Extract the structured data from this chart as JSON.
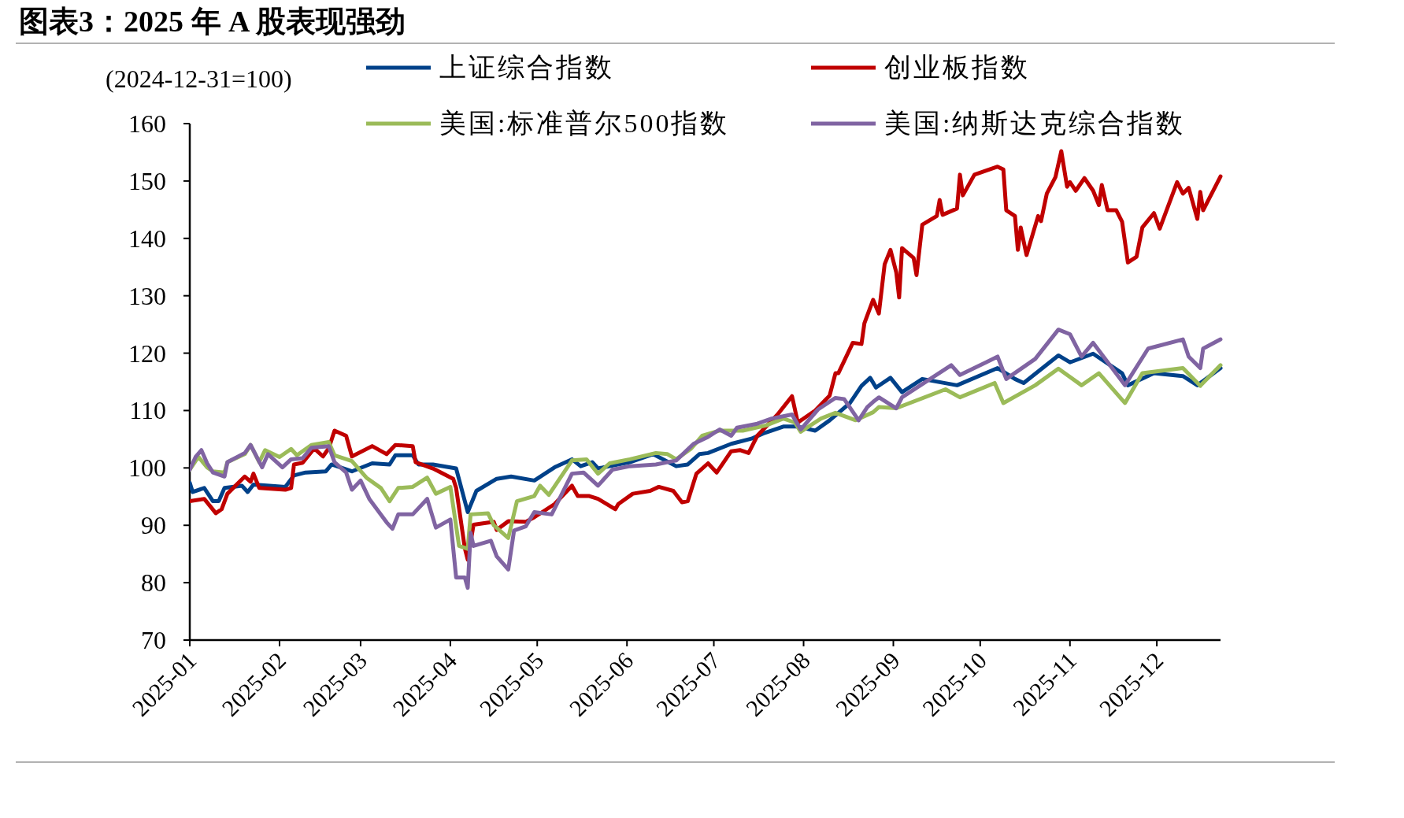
{
  "chart_data": {
    "type": "line",
    "title": "图表3：2025 年 A 股表现强劲",
    "subtitle": "(2024-12-31=100)",
    "legend": "top",
    "grid": false,
    "xlim": [
      "2025-01-01",
      "2025-12-23"
    ],
    "ylim": [
      70,
      160
    ],
    "yticks": [
      70,
      80,
      90,
      100,
      110,
      120,
      130,
      140,
      150,
      160
    ],
    "xticks": [
      {
        "value": "2025-01-01",
        "label": "2025-01"
      },
      {
        "value": "2025-02-01",
        "label": "2025-02"
      },
      {
        "value": "2025-03-01",
        "label": "2025-03"
      },
      {
        "value": "2025-04-01",
        "label": "2025-04"
      },
      {
        "value": "2025-05-01",
        "label": "2025-05"
      },
      {
        "value": "2025-06-01",
        "label": "2025-06"
      },
      {
        "value": "2025-07-01",
        "label": "2025-07"
      },
      {
        "value": "2025-08-01",
        "label": "2025-08"
      },
      {
        "value": "2025-09-01",
        "label": "2025-09"
      },
      {
        "value": "2025-10-01",
        "label": "2025-10"
      },
      {
        "value": "2025-11-01",
        "label": "2025-11"
      },
      {
        "value": "2025-12-01",
        "label": "2025-12"
      }
    ],
    "series": [
      {
        "name": "上证综合指数",
        "color": "#004189",
        "x": [
          "2025-01-01",
          "2025-01-02",
          "2025-01-06",
          "2025-01-09",
          "2025-01-11",
          "2025-01-13",
          "2025-01-19",
          "2025-01-21",
          "2025-01-23",
          "2025-02-03",
          "2025-02-06",
          "2025-02-10",
          "2025-02-17",
          "2025-02-19",
          "2025-02-26",
          "2025-03-05",
          "2025-03-11",
          "2025-03-13",
          "2025-03-19",
          "2025-03-21",
          "2025-03-26",
          "2025-04-03",
          "2025-04-07",
          "2025-04-10",
          "2025-04-17",
          "2025-04-22",
          "2025-04-30",
          "2025-05-07",
          "2025-05-13",
          "2025-05-16",
          "2025-05-20",
          "2025-05-22",
          "2025-06-02",
          "2025-06-10",
          "2025-06-18",
          "2025-06-22",
          "2025-06-26",
          "2025-06-29",
          "2025-07-07",
          "2025-07-14",
          "2025-07-18",
          "2025-07-25",
          "2025-07-30",
          "2025-08-05",
          "2025-08-10",
          "2025-08-17",
          "2025-08-21",
          "2025-08-24",
          "2025-08-26",
          "2025-08-31",
          "2025-09-04",
          "2025-09-11",
          "2025-09-23",
          "2025-10-07",
          "2025-10-13",
          "2025-10-16",
          "2025-10-28",
          "2025-11-01",
          "2025-11-09",
          "2025-11-19",
          "2025-11-21",
          "2025-11-30",
          "2025-12-10",
          "2025-12-15",
          "2025-12-23"
        ],
        "values": [
          97.4,
          95.8,
          96.5,
          94.2,
          94.2,
          96.5,
          96.9,
          95.8,
          97.1,
          96.7,
          98.7,
          99.2,
          99.4,
          100.6,
          99.4,
          100.8,
          100.6,
          102.2,
          102.2,
          100.6,
          100.6,
          99.9,
          92.3,
          96,
          98.1,
          98.5,
          97.8,
          100.1,
          101.5,
          100.3,
          101,
          99.9,
          101,
          102.4,
          100.3,
          100.6,
          102.4,
          102.6,
          104.2,
          105.1,
          106,
          107.2,
          107.2,
          106.5,
          108.3,
          111.3,
          114.3,
          115.7,
          114,
          115.7,
          113.2,
          115.5,
          114.4,
          117.4,
          115.5,
          114.8,
          119.6,
          118.4,
          119.9,
          116.5,
          114.4,
          116.5,
          116,
          114.4,
          117.4
        ]
      },
      {
        "name": "创业板指数",
        "color": "#c00000",
        "x": [
          "2025-01-01",
          "2025-01-06",
          "2025-01-10",
          "2025-01-12",
          "2025-01-14",
          "2025-01-20",
          "2025-01-22",
          "2025-01-23",
          "2025-01-25",
          "2025-02-03",
          "2025-02-05",
          "2025-02-06",
          "2025-02-09",
          "2025-02-13",
          "2025-02-16",
          "2025-02-18",
          "2025-02-20",
          "2025-02-24",
          "2025-02-26",
          "2025-03-05",
          "2025-03-10",
          "2025-03-13",
          "2025-03-19",
          "2025-03-20",
          "2025-03-26",
          "2025-04-02",
          "2025-04-03",
          "2025-04-06",
          "2025-04-07",
          "2025-04-09",
          "2025-04-16",
          "2025-04-17",
          "2025-04-21",
          "2025-04-27",
          "2025-04-30",
          "2025-05-07",
          "2025-05-13",
          "2025-05-15",
          "2025-05-19",
          "2025-05-22",
          "2025-05-28",
          "2025-05-29",
          "2025-06-03",
          "2025-06-09",
          "2025-06-12",
          "2025-06-17",
          "2025-06-20",
          "2025-06-22",
          "2025-06-25",
          "2025-06-29",
          "2025-07-02",
          "2025-07-07",
          "2025-07-10",
          "2025-07-13",
          "2025-07-16",
          "2025-07-23",
          "2025-07-28",
          "2025-07-30",
          "2025-08-05",
          "2025-08-10",
          "2025-08-12",
          "2025-08-13",
          "2025-08-18",
          "2025-08-21",
          "2025-08-22",
          "2025-08-25",
          "2025-08-27",
          "2025-08-29",
          "2025-08-31",
          "2025-09-02",
          "2025-09-03",
          "2025-09-04",
          "2025-09-08",
          "2025-09-09",
          "2025-09-11",
          "2025-09-16",
          "2025-09-17",
          "2025-09-18",
          "2025-09-23",
          "2025-09-24",
          "2025-09-25",
          "2025-09-29",
          "2025-10-07",
          "2025-10-09",
          "2025-10-10",
          "2025-10-13",
          "2025-10-14",
          "2025-10-15",
          "2025-10-17",
          "2025-10-21",
          "2025-10-22",
          "2025-10-24",
          "2025-10-27",
          "2025-10-29",
          "2025-10-31",
          "2025-11-01",
          "2025-11-03",
          "2025-11-06",
          "2025-11-09",
          "2025-11-11",
          "2025-11-12",
          "2025-11-14",
          "2025-11-17",
          "2025-11-19",
          "2025-11-21",
          "2025-11-24",
          "2025-11-26",
          "2025-11-30",
          "2025-12-02",
          "2025-12-08",
          "2025-12-10",
          "2025-12-12",
          "2025-12-15",
          "2025-12-16",
          "2025-12-17",
          "2025-12-23"
        ],
        "values": [
          94.2,
          94.6,
          92.1,
          92.8,
          95.5,
          98.5,
          97.6,
          99,
          96.5,
          96.2,
          96.5,
          100.6,
          100.9,
          103.4,
          102,
          103.4,
          106.5,
          105.6,
          102,
          103.8,
          102.4,
          104,
          103.8,
          101,
          99.9,
          98.1,
          96.5,
          86,
          84,
          90.1,
          90.6,
          89.2,
          90.7,
          90.6,
          91.4,
          93.7,
          96.9,
          95.1,
          95.1,
          94.6,
          92.8,
          93.7,
          95.5,
          96,
          96.7,
          96,
          94,
          94.2,
          99,
          100.8,
          99.2,
          102.9,
          103.1,
          102.6,
          105.6,
          109.3,
          112.5,
          107.9,
          110,
          112.6,
          116.5,
          116.5,
          121.8,
          121.6,
          125.2,
          129.3,
          126.9,
          135.5,
          138,
          134.1,
          129.7,
          138.3,
          136.6,
          133.6,
          142.4,
          143.9,
          146.7,
          144.1,
          145.2,
          151.1,
          147.5,
          151.1,
          152.5,
          152,
          144.9,
          143.9,
          138,
          141.9,
          137.1,
          143.9,
          143,
          147.8,
          150.7,
          155.2,
          149,
          149.8,
          148.3,
          150.5,
          148.3,
          145.8,
          149.3,
          144.9,
          144.9,
          142.9,
          135.8,
          136.8,
          141.9,
          144.4,
          141.7,
          149.8,
          147.8,
          148.8,
          143.4,
          148.1,
          144.9,
          150.8
        ]
      },
      {
        "name": "美国:标准普尔500指数",
        "color": "#9bbb59",
        "x": [
          "2025-01-01",
          "2025-01-03",
          "2025-01-04",
          "2025-01-07",
          "2025-01-09",
          "2025-01-13",
          "2025-01-14",
          "2025-01-20",
          "2025-01-22",
          "2025-01-25",
          "2025-01-27",
          "2025-02-01",
          "2025-02-05",
          "2025-02-07",
          "2025-02-12",
          "2025-02-18",
          "2025-02-20",
          "2025-02-26",
          "2025-03-03",
          "2025-03-08",
          "2025-03-11",
          "2025-03-14",
          "2025-03-19",
          "2025-03-24",
          "2025-03-27",
          "2025-04-01",
          "2025-04-04",
          "2025-04-07",
          "2025-04-08",
          "2025-04-14",
          "2025-04-16",
          "2025-04-21",
          "2025-04-24",
          "2025-04-30",
          "2025-05-02",
          "2025-05-05",
          "2025-05-13",
          "2025-05-18",
          "2025-05-22",
          "2025-05-26",
          "2025-06-02",
          "2025-06-11",
          "2025-06-15",
          "2025-06-18",
          "2025-06-23",
          "2025-06-27",
          "2025-07-03",
          "2025-07-11",
          "2025-07-19",
          "2025-07-25",
          "2025-07-29",
          "2025-07-31",
          "2025-08-07",
          "2025-08-12",
          "2025-08-19",
          "2025-08-25",
          "2025-08-27",
          "2025-09-02",
          "2025-09-19",
          "2025-09-24",
          "2025-10-06",
          "2025-10-09",
          "2025-10-20",
          "2025-10-28",
          "2025-11-05",
          "2025-11-11",
          "2025-11-20",
          "2025-11-26",
          "2025-12-10",
          "2025-12-16",
          "2025-12-23"
        ],
        "values": [
          99.7,
          101.2,
          101.9,
          100.1,
          99.4,
          99.2,
          101,
          102.4,
          104,
          101,
          103.1,
          101.9,
          103.3,
          102.2,
          104,
          104.5,
          102.2,
          101.2,
          98.3,
          96.5,
          94.2,
          96.5,
          96.7,
          98.3,
          95.5,
          96.7,
          86.4,
          85.9,
          91.9,
          92.1,
          90,
          87.8,
          94.2,
          95.1,
          96.9,
          95.3,
          101.3,
          101.5,
          99,
          100.8,
          101.5,
          102.6,
          102.4,
          101.5,
          103.3,
          105.6,
          106.5,
          106.5,
          107.4,
          108.6,
          107.9,
          106.3,
          108.6,
          109.6,
          108.3,
          109.7,
          110.6,
          110.4,
          113.7,
          112.3,
          114.8,
          111.3,
          114.4,
          117.3,
          114.4,
          116.5,
          111.3,
          116.5,
          117.4,
          114.3,
          117.9
        ]
      },
      {
        "name": "美国:纳斯达克综合指数",
        "color": "#8064a2",
        "x": [
          "2025-01-01",
          "2025-01-03",
          "2025-01-05",
          "2025-01-07",
          "2025-01-09",
          "2025-01-13",
          "2025-01-14",
          "2025-01-20",
          "2025-01-22",
          "2025-01-26",
          "2025-01-28",
          "2025-02-02",
          "2025-02-05",
          "2025-02-09",
          "2025-02-12",
          "2025-02-18",
          "2025-02-20",
          "2025-02-24",
          "2025-02-26",
          "2025-03-01",
          "2025-03-04",
          "2025-03-10",
          "2025-03-12",
          "2025-03-14",
          "2025-03-19",
          "2025-03-24",
          "2025-03-27",
          "2025-04-01",
          "2025-04-03",
          "2025-04-06",
          "2025-04-07",
          "2025-04-08",
          "2025-04-09",
          "2025-04-15",
          "2025-04-17",
          "2025-04-21",
          "2025-04-23",
          "2025-04-27",
          "2025-04-30",
          "2025-05-06",
          "2025-05-13",
          "2025-05-17",
          "2025-05-22",
          "2025-05-27",
          "2025-06-02",
          "2025-06-11",
          "2025-06-18",
          "2025-06-24",
          "2025-06-29",
          "2025-07-03",
          "2025-07-07",
          "2025-07-09",
          "2025-07-16",
          "2025-07-21",
          "2025-07-28",
          "2025-07-31",
          "2025-08-06",
          "2025-08-12",
          "2025-08-15",
          "2025-08-20",
          "2025-08-23",
          "2025-08-25",
          "2025-08-27",
          "2025-09-02",
          "2025-09-04",
          "2025-09-21",
          "2025-09-24",
          "2025-10-03",
          "2025-10-07",
          "2025-10-10",
          "2025-10-20",
          "2025-10-28",
          "2025-11-01",
          "2025-11-05",
          "2025-11-09",
          "2025-11-20",
          "2025-11-28",
          "2025-12-10",
          "2025-12-12",
          "2025-12-16",
          "2025-12-17",
          "2025-12-23"
        ],
        "values": [
          99.7,
          101.9,
          103.1,
          100.8,
          99.2,
          98.5,
          101,
          102.6,
          104,
          100.1,
          102.4,
          100.1,
          101.5,
          101.7,
          103.5,
          103.8,
          101,
          99.2,
          96.2,
          97.8,
          94.6,
          90.5,
          89.4,
          91.9,
          91.9,
          94.6,
          89.6,
          91,
          80.9,
          80.9,
          79.1,
          88.7,
          86.4,
          87.3,
          84.6,
          82.3,
          89.1,
          89.8,
          92.3,
          91.9,
          99,
          99.2,
          96.9,
          99.7,
          100.3,
          100.6,
          101.3,
          104.2,
          105.4,
          106.7,
          105.6,
          107,
          107.7,
          108.6,
          109.3,
          106.7,
          110.2,
          112.2,
          112,
          108.3,
          110.6,
          111.5,
          112.3,
          110.4,
          112.3,
          117.9,
          116.2,
          118.4,
          119.4,
          115.5,
          119,
          124.1,
          123.3,
          119.4,
          121.8,
          114.4,
          120.8,
          122.4,
          119.4,
          117.4,
          120.8,
          122.4
        ]
      }
    ]
  }
}
